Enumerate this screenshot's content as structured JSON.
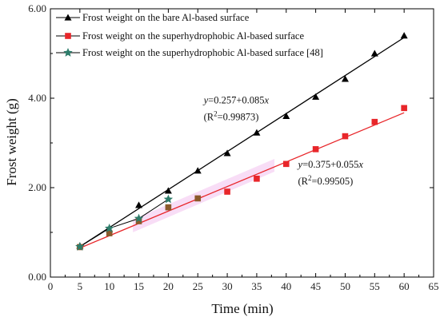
{
  "chart_data": {
    "type": "scatter",
    "xlabel": "Time (min)",
    "ylabel": "Frost weight  (g)",
    "xlim": [
      0,
      65
    ],
    "ylim": [
      0,
      6
    ],
    "x_ticks": [
      "0",
      "5",
      "10",
      "15",
      "20",
      "25",
      "30",
      "35",
      "40",
      "45",
      "50",
      "55",
      "60",
      "65"
    ],
    "y_ticks": [
      "0.00",
      "2.00",
      "4.00",
      "6.00"
    ],
    "grid": false,
    "legend_placement": "top-left",
    "series": [
      {
        "name": "Frost weight on the bare Al-based surface",
        "marker": "triangle",
        "color": "#000000",
        "x": [
          5,
          10,
          15,
          20,
          25,
          30,
          35,
          40,
          45,
          50,
          55,
          60
        ],
        "y": [
          0.7,
          1.07,
          1.61,
          1.93,
          2.38,
          2.77,
          3.23,
          3.6,
          4.03,
          4.43,
          5.0,
          5.4
        ],
        "fit": {
          "intercept": 0.257,
          "slope": 0.085,
          "x_range": [
            5,
            60
          ]
        }
      },
      {
        "name": "Frost weight on the superhydrophobic Al-based surface",
        "marker": "square",
        "color": "#e8262a",
        "x": [
          5,
          10,
          15,
          20,
          25,
          30,
          35,
          40,
          45,
          50,
          55,
          60
        ],
        "y": [
          0.67,
          0.98,
          1.25,
          1.56,
          1.76,
          1.91,
          2.2,
          2.53,
          2.86,
          3.15,
          3.47,
          3.78
        ],
        "fit": {
          "intercept": 0.375,
          "slope": 0.055,
          "x_range": [
            5,
            60
          ]
        }
      },
      {
        "name": "Frost weight on the superhydrophobic Al-based surface [48]",
        "marker": "star",
        "color": "#2e7d6b",
        "x": [
          5,
          10,
          15,
          20
        ],
        "y": [
          0.68,
          1.09,
          1.31,
          1.74
        ]
      }
    ],
    "annotations": [
      {
        "label_y": "y",
        "equation": "=0.257+0.085",
        "label_x": "x",
        "r2_prefix": "(R",
        "r2_sup": "2",
        "r2_value": "=0.99873)",
        "anchor_data": [
          26,
          3.88
        ]
      },
      {
        "label_y": "y",
        "equation": "=0.375+0.055",
        "label_x": "x",
        "r2_prefix": "(R",
        "r2_sup": "2",
        "r2_value": "=0.99505)",
        "anchor_data": [
          42,
          2.45
        ]
      }
    ],
    "colors": {
      "axis": "#000000",
      "bare_fit": "#000000",
      "superhydrophobic_fit": "#e8262a",
      "highlight_band": "#f3c6f0"
    }
  }
}
